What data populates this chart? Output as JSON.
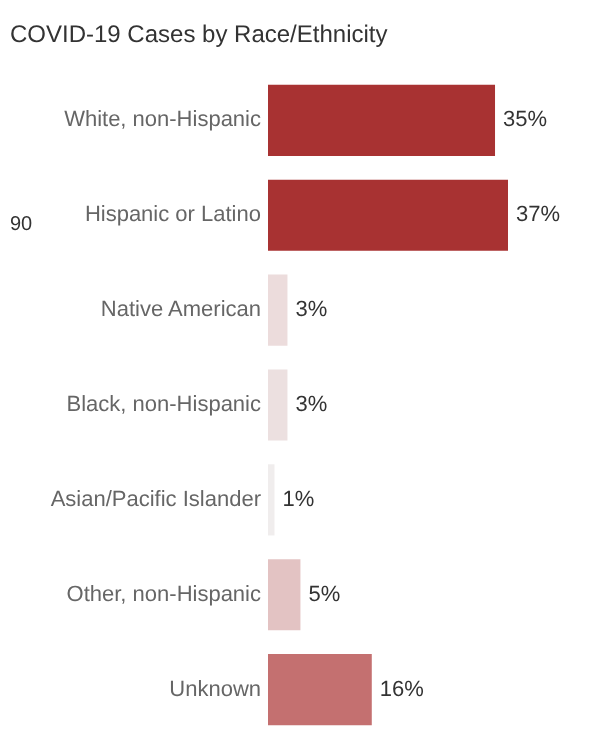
{
  "chart_data": {
    "type": "bar",
    "orientation": "horizontal",
    "title": "COVID-19 Cases by Race/Ethnicity",
    "categories": [
      "White, non-Hispanic",
      "Hispanic or Latino",
      "Native American",
      "Black, non-Hispanic",
      "Asian/Pacific Islander",
      "Other, non-Hispanic",
      "Unknown"
    ],
    "values": [
      35,
      37,
      3,
      3,
      1,
      5,
      16
    ],
    "value_labels": [
      "35%",
      "37%",
      "3%",
      "3%",
      "1%",
      "5%",
      "16%"
    ],
    "colors": [
      "#a83232",
      "#a83232",
      "#ecdcdc",
      "#ece0e0",
      "#f0eded",
      "#e3c3c3",
      "#c47070"
    ],
    "annotations": [
      "90"
    ]
  }
}
